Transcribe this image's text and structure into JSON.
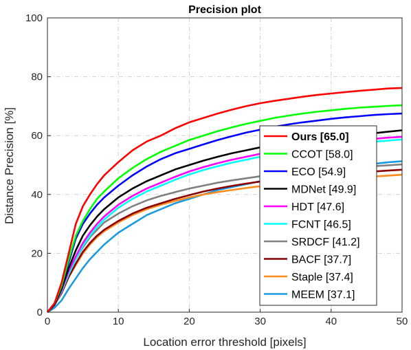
{
  "chart_data": {
    "type": "line",
    "title": "Precision plot",
    "xlabel": "Location error threshold [pixels]",
    "ylabel": "Distance Precision [%]",
    "xlim": [
      0,
      50
    ],
    "ylim": [
      0,
      100
    ],
    "xticks": [
      0,
      10,
      20,
      30,
      40,
      50
    ],
    "yticks": [
      0,
      20,
      40,
      60,
      80,
      100
    ],
    "grid": true,
    "legend_position": "lower-right",
    "x": [
      0,
      1,
      2,
      3,
      4,
      5,
      6,
      7,
      8,
      10,
      12,
      14,
      16,
      18,
      20,
      22,
      24,
      26,
      28,
      30,
      32,
      34,
      36,
      38,
      40,
      42,
      44,
      46,
      48,
      50
    ],
    "series": [
      {
        "name": "Ours [65.0]",
        "color": "#ff0000",
        "bold": true,
        "values": [
          0,
          3,
          10,
          20,
          30,
          36,
          40,
          43.5,
          46.5,
          51,
          55,
          58,
          60,
          62.5,
          64.5,
          66,
          67.5,
          68.8,
          70,
          71,
          71.8,
          72.5,
          73.2,
          73.8,
          74.3,
          74.8,
          75.2,
          75.6,
          76,
          76.2
        ]
      },
      {
        "name": "CCOT [58.0]",
        "color": "#00ff00",
        "values": [
          0,
          3,
          9,
          18,
          26,
          31,
          35,
          38.5,
          41,
          45.5,
          49,
          52,
          54.5,
          56.5,
          58.5,
          60,
          61.5,
          62.8,
          64,
          65,
          66,
          66.8,
          67.5,
          68.1,
          68.6,
          69.1,
          69.5,
          69.8,
          70.1,
          70.3
        ]
      },
      {
        "name": "ECO [54.9]",
        "color": "#0000ff",
        "values": [
          0,
          3,
          9,
          17,
          25,
          30,
          33.5,
          36.5,
          39,
          43,
          46.5,
          49.5,
          52,
          54,
          55.5,
          57,
          58.5,
          59.8,
          61,
          62,
          63,
          63.8,
          64.5,
          65.1,
          65.7,
          66.2,
          66.6,
          67,
          67.3,
          67.5
        ]
      },
      {
        "name": "MDNet [49.9]",
        "color": "#000000",
        "values": [
          0,
          2.5,
          8,
          15,
          21,
          26,
          29.5,
          32.5,
          35,
          39,
          42,
          44.5,
          46.5,
          48.5,
          50,
          51.5,
          52.8,
          54,
          55,
          56,
          56.8,
          57.5,
          58.2,
          58.8,
          59.3,
          59.8,
          60.3,
          60.8,
          61.3,
          61.8
        ]
      },
      {
        "name": "HDT [47.6]",
        "color": "#ff00ff",
        "values": [
          0,
          2.5,
          7.5,
          14,
          19,
          23.5,
          27,
          30,
          32.5,
          36.5,
          39.5,
          42,
          44,
          46,
          47.8,
          49.3,
          50.6,
          51.8,
          52.8,
          53.8,
          54.6,
          55.4,
          56.1,
          56.8,
          57.4,
          57.9,
          58.4,
          58.9,
          59.3,
          59.6
        ]
      },
      {
        "name": "FCNT [46.5]",
        "color": "#00ffff",
        "values": [
          0,
          2.5,
          7,
          13,
          18,
          22.5,
          26,
          29,
          31.5,
          35.5,
          38.5,
          41,
          43,
          45,
          46.8,
          48.3,
          49.6,
          50.8,
          51.8,
          52.8,
          53.6,
          54.4,
          55.1,
          55.8,
          56.4,
          56.9,
          57.4,
          57.9,
          58.3,
          58.7
        ]
      },
      {
        "name": "SRDCF [41.2]",
        "color": "#808080",
        "values": [
          0,
          2.5,
          7,
          13,
          18,
          22,
          25.5,
          28,
          30.5,
          33.5,
          36,
          38,
          39.5,
          40.8,
          42,
          43,
          44,
          44.8,
          45.5,
          46.2,
          46.8,
          47.3,
          47.8,
          48.2,
          48.6,
          49,
          49.3,
          49.6,
          49.9,
          50.2
        ]
      },
      {
        "name": "BACF [37.7]",
        "color": "#8b0000",
        "values": [
          0,
          2.5,
          6.5,
          12,
          16.5,
          20.5,
          23.5,
          26,
          28,
          31,
          33.5,
          35.5,
          37,
          38.5,
          39.8,
          41,
          42,
          42.9,
          43.7,
          44.4,
          45,
          45.5,
          46,
          46.4,
          46.8,
          47.2,
          47.5,
          47.8,
          48.1,
          48.4
        ]
      },
      {
        "name": "Staple [37.4]",
        "color": "#ff8c1a",
        "values": [
          0,
          2.5,
          6.5,
          12,
          16,
          20,
          23,
          25.5,
          27.5,
          30.5,
          33,
          35,
          36.5,
          37.8,
          39,
          40,
          40.8,
          41.5,
          42.2,
          42.8,
          43.4,
          43.9,
          44.4,
          44.8,
          45.2,
          45.5,
          45.8,
          46.1,
          46.4,
          46.7
        ]
      },
      {
        "name": "MEEM [37.1]",
        "color": "#1a9ae0",
        "values": [
          0,
          1.5,
          4,
          8,
          11.5,
          15,
          18,
          20.5,
          23,
          27,
          30,
          33,
          35,
          37,
          38.5,
          40,
          41.5,
          42.5,
          43.5,
          44.5,
          45.5,
          46.5,
          47.3,
          48,
          48.7,
          49.3,
          49.9,
          50.4,
          50.9,
          51.3
        ]
      }
    ]
  }
}
